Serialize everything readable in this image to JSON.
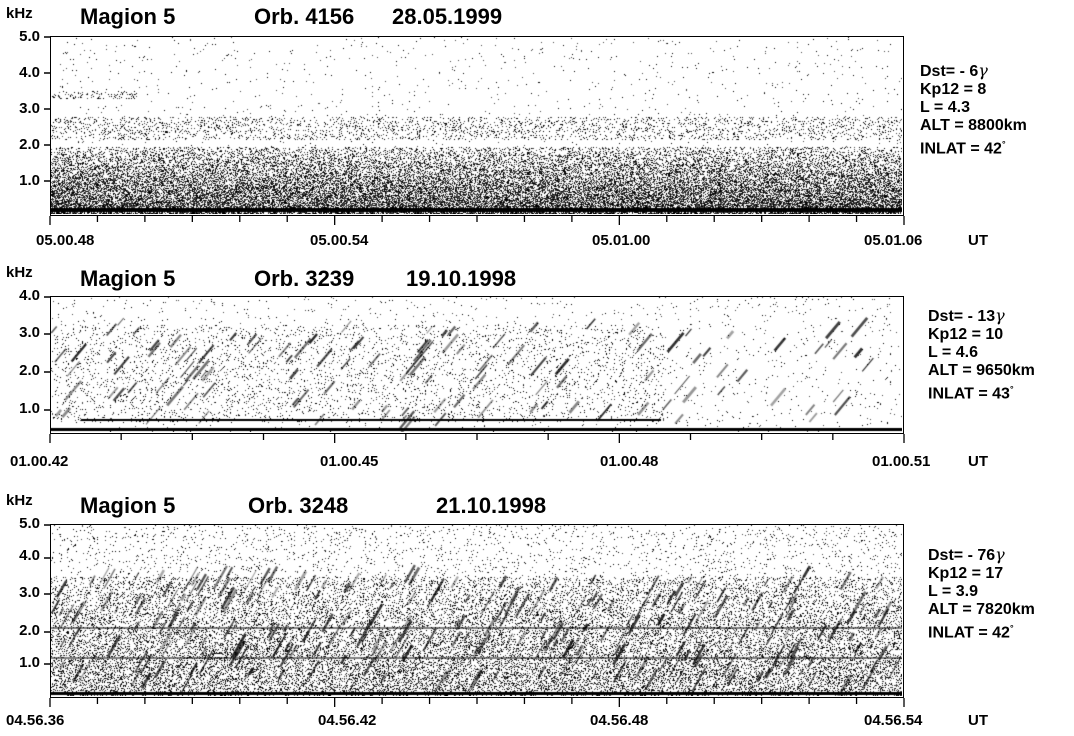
{
  "panels": [
    {
      "unit": "kHz",
      "satellite": "Magion 5",
      "orbit": "Orb. 4156",
      "date": "28.05.1999",
      "yticks": [
        "5.0",
        "4.0",
        "3.0",
        "2.0",
        "1.0"
      ],
      "xticks": [
        "05.00.48",
        "05.00.54",
        "05.01.00",
        "05.01.06"
      ],
      "ut": "UT",
      "dst_prefix": "Dst= - 6",
      "gamma": "γ",
      "kp": "Kp12 = 8",
      "l": "L = 4.3",
      "alt": "ALT = 8800km",
      "inlat": "INLAT = 42",
      "degree": "°",
      "chart_data": {
        "type": "heatmap",
        "title": "Magion 5 Orb. 4156 28.05.1999",
        "ylabel": "kHz",
        "xlabel": "UT",
        "ylim": [
          0,
          5.0
        ],
        "x": [
          "05.00.48",
          "05.00.54",
          "05.01.00",
          "05.01.06"
        ],
        "dst_gamma": -6,
        "kp12": 8,
        "L": 4.3,
        "alt_km": 8800,
        "inlat_deg": 42
      }
    },
    {
      "unit": "kHz",
      "satellite": "Magion 5",
      "orbit": "Orb. 3239",
      "date": "19.10.1998",
      "yticks": [
        "4.0",
        "3.0",
        "2.0",
        "1.0"
      ],
      "xticks": [
        "01.00.42",
        "01.00.45",
        "01.00.48",
        "01.00.51"
      ],
      "ut": "UT",
      "dst_prefix": "Dst= - 13",
      "gamma": "γ",
      "kp": "Kp12 = 10",
      "l": "L = 4.6",
      "alt": "ALT = 9650km",
      "inlat": "INLAT = 43",
      "degree": "°",
      "chart_data": {
        "type": "heatmap",
        "title": "Magion 5 Orb. 3239 19.10.1998",
        "ylabel": "kHz",
        "xlabel": "UT",
        "ylim": [
          0,
          4.0
        ],
        "x": [
          "01.00.42",
          "01.00.45",
          "01.00.48",
          "01.00.51"
        ],
        "dst_gamma": -13,
        "kp12": 10,
        "L": 4.6,
        "alt_km": 9650,
        "inlat_deg": 43
      }
    },
    {
      "unit": "kHz",
      "satellite": "Magion 5",
      "orbit": "Orb. 3248",
      "date": "21.10.1998",
      "yticks": [
        "5.0",
        "4.0",
        "3.0",
        "2.0",
        "1.0"
      ],
      "xticks": [
        "04.56.36",
        "04.56.42",
        "04.56.48",
        "04.56.54"
      ],
      "ut": "UT",
      "dst_prefix": "Dst= - 76",
      "gamma": "γ",
      "kp": "Kp12 = 17",
      "l": "L = 3.9",
      "alt": "ALT = 7820km",
      "inlat": "INLAT = 42",
      "degree": "°",
      "chart_data": {
        "type": "heatmap",
        "title": "Magion 5 Orb. 3248 21.10.1998",
        "ylabel": "kHz",
        "xlabel": "UT",
        "ylim": [
          0,
          5.0
        ],
        "x": [
          "04.56.36",
          "04.56.42",
          "04.56.48",
          "04.56.54"
        ],
        "dst_gamma": -76,
        "kp12": 17,
        "L": 3.9,
        "alt_km": 7820,
        "inlat_deg": 42
      }
    }
  ]
}
